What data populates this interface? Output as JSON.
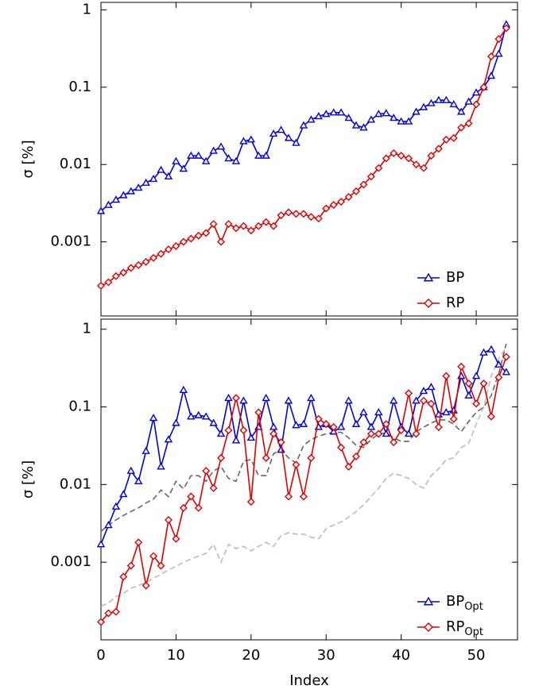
{
  "chart_data": [
    {
      "type": "line",
      "ylog": true,
      "ylim": [
        0.00011,
        1.25
      ],
      "yticks": [
        1,
        0.1,
        0.01,
        0.001
      ],
      "xlim": [
        0,
        55.5
      ],
      "xticks": [
        0,
        10,
        20,
        30,
        40,
        50
      ],
      "xtick_labels": false,
      "ylabel": "σ  [%]",
      "legend": "lower right",
      "series": [
        {
          "name": "BP",
          "color": "#0000dd",
          "marker": "triangle",
          "values": [
            0.0025,
            0.003,
            0.0035,
            0.004,
            0.0045,
            0.005,
            0.0058,
            0.0065,
            0.0085,
            0.007,
            0.011,
            0.0088,
            0.013,
            0.013,
            0.011,
            0.015,
            0.017,
            0.012,
            0.011,
            0.02,
            0.021,
            0.013,
            0.013,
            0.025,
            0.028,
            0.022,
            0.019,
            0.032,
            0.038,
            0.042,
            0.045,
            0.047,
            0.047,
            0.04,
            0.032,
            0.03,
            0.038,
            0.045,
            0.046,
            0.04,
            0.036,
            0.036,
            0.048,
            0.055,
            0.062,
            0.068,
            0.068,
            0.06,
            0.048,
            0.065,
            0.085,
            0.1,
            0.14,
            0.27,
            0.65
          ]
        },
        {
          "name": "RP",
          "color": "#dd0000",
          "marker": "diamond",
          "values": [
            0.00027,
            0.0003,
            0.00036,
            0.0004,
            0.00046,
            0.0005,
            0.00055,
            0.00062,
            0.0007,
            0.0008,
            0.00088,
            0.001,
            0.0011,
            0.0012,
            0.0013,
            0.0017,
            0.001,
            0.0017,
            0.0015,
            0.0016,
            0.0014,
            0.0016,
            0.0018,
            0.0016,
            0.0022,
            0.0024,
            0.0023,
            0.0023,
            0.0021,
            0.002,
            0.0027,
            0.003,
            0.0033,
            0.0038,
            0.0045,
            0.0055,
            0.007,
            0.009,
            0.012,
            0.014,
            0.013,
            0.012,
            0.01,
            0.009,
            0.013,
            0.016,
            0.021,
            0.022,
            0.03,
            0.034,
            0.06,
            0.1,
            0.25,
            0.42,
            0.58
          ]
        }
      ]
    },
    {
      "type": "line",
      "ylog": true,
      "ylim": [
        0.0001,
        1.35
      ],
      "yticks": [
        1,
        0.1,
        0.01,
        0.001
      ],
      "xlim": [
        0,
        55.5
      ],
      "xticks": [
        0,
        10,
        20,
        30,
        40,
        50
      ],
      "xtick_labels": true,
      "xlabel": "Index",
      "ylabel": "σ  [%]",
      "legend": "lower right",
      "series": [
        {
          "color": "#666666",
          "dashed": true,
          "values": [
            0.0025,
            0.003,
            0.0035,
            0.004,
            0.0045,
            0.005,
            0.0058,
            0.0065,
            0.0085,
            0.007,
            0.011,
            0.0088,
            0.013,
            0.013,
            0.011,
            0.015,
            0.017,
            0.012,
            0.011,
            0.02,
            0.021,
            0.013,
            0.013,
            0.025,
            0.028,
            0.022,
            0.019,
            0.032,
            0.038,
            0.042,
            0.045,
            0.047,
            0.047,
            0.04,
            0.032,
            0.03,
            0.038,
            0.045,
            0.046,
            0.04,
            0.036,
            0.036,
            0.048,
            0.055,
            0.062,
            0.068,
            0.068,
            0.06,
            0.048,
            0.065,
            0.085,
            0.1,
            0.14,
            0.27,
            0.65
          ]
        },
        {
          "color": "#bbbbbb",
          "dashed": true,
          "values": [
            0.00027,
            0.0003,
            0.00036,
            0.0004,
            0.00046,
            0.0005,
            0.00055,
            0.00062,
            0.0007,
            0.0008,
            0.00088,
            0.001,
            0.0011,
            0.0012,
            0.0013,
            0.0017,
            0.001,
            0.0017,
            0.0015,
            0.0016,
            0.0014,
            0.0016,
            0.0018,
            0.0016,
            0.0022,
            0.0024,
            0.0023,
            0.0023,
            0.0021,
            0.002,
            0.0027,
            0.003,
            0.0033,
            0.0038,
            0.0045,
            0.0055,
            0.007,
            0.009,
            0.012,
            0.014,
            0.013,
            0.012,
            0.01,
            0.009,
            0.013,
            0.016,
            0.021,
            0.022,
            0.03,
            0.034,
            0.06,
            0.1,
            0.25,
            0.42,
            0.58
          ]
        },
        {
          "name": "BP",
          "name_subscript": "Opt",
          "color": "#0000dd",
          "marker": "triangle",
          "values": [
            0.0017,
            0.003,
            0.0052,
            0.0075,
            0.015,
            0.011,
            0.027,
            0.072,
            0.017,
            0.038,
            0.062,
            0.165,
            0.075,
            0.078,
            0.075,
            0.062,
            0.045,
            0.13,
            0.037,
            0.12,
            0.04,
            0.055,
            0.13,
            0.055,
            0.028,
            0.12,
            0.058,
            0.06,
            0.13,
            0.055,
            0.06,
            0.048,
            0.055,
            0.12,
            0.06,
            0.085,
            0.055,
            0.085,
            0.045,
            0.12,
            0.055,
            0.045,
            0.12,
            0.16,
            0.18,
            0.08,
            0.085,
            0.09,
            0.25,
            0.14,
            0.25,
            0.5,
            0.55,
            0.35,
            0.28
          ]
        },
        {
          "name": "RP",
          "name_subscript": "Opt",
          "color": "#dd0000",
          "marker": "diamond",
          "values": [
            0.00017,
            0.00022,
            0.00023,
            0.00065,
            0.0009,
            0.0018,
            0.0005,
            0.0012,
            0.0009,
            0.0035,
            0.002,
            0.005,
            0.007,
            0.005,
            0.015,
            0.009,
            0.022,
            0.05,
            0.13,
            0.05,
            0.006,
            0.085,
            0.022,
            0.045,
            0.035,
            0.007,
            0.018,
            0.007,
            0.022,
            0.07,
            0.06,
            0.055,
            0.03,
            0.017,
            0.023,
            0.035,
            0.045,
            0.045,
            0.06,
            0.035,
            0.05,
            0.15,
            0.045,
            0.12,
            0.11,
            0.055,
            0.25,
            0.07,
            0.33,
            0.2,
            0.11,
            0.2,
            0.075,
            0.24,
            0.44
          ]
        }
      ]
    }
  ]
}
